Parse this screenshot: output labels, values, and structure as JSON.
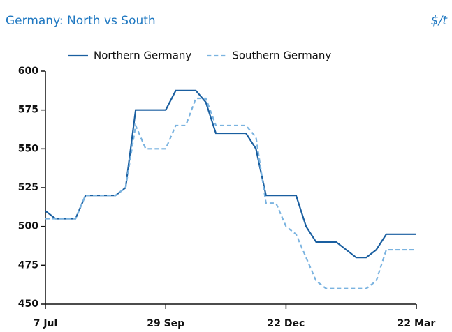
{
  "chart_data": {
    "type": "line",
    "title": "Germany: North vs South",
    "unit": "$/t",
    "categories": [
      "7 Jul",
      null,
      null,
      null,
      null,
      null,
      null,
      null,
      null,
      null,
      null,
      null,
      "29 Sep",
      null,
      null,
      null,
      null,
      null,
      null,
      null,
      null,
      null,
      null,
      null,
      "22 Dec",
      null,
      null,
      null,
      null,
      null,
      null,
      null,
      null,
      null,
      null,
      null,
      null,
      "22 Mar"
    ],
    "series": [
      {
        "name": "Northern Germany",
        "color": "#1a5fa0",
        "dash": false,
        "values": [
          510,
          505,
          505,
          505,
          520,
          520,
          520,
          520,
          525,
          575,
          575,
          575,
          575,
          587.5,
          587.5,
          587.5,
          580,
          560,
          560,
          560,
          560,
          550,
          520,
          520,
          520,
          520,
          500,
          490,
          490,
          490,
          485,
          480,
          480,
          485,
          495,
          495,
          495,
          495
        ]
      },
      {
        "name": "Southern Germany",
        "color": "#7ab3e0",
        "dash": true,
        "values": [
          505,
          505,
          505,
          505,
          520,
          520,
          520,
          520,
          525,
          565,
          550,
          550,
          550,
          565,
          565,
          582.5,
          582.5,
          565,
          565,
          565,
          565,
          557.5,
          515,
          515,
          500,
          495,
          480,
          465,
          460,
          460,
          460,
          460,
          460,
          465,
          485,
          485,
          485,
          485
        ]
      }
    ],
    "ylim": [
      450,
      600
    ],
    "yticks": [
      450,
      475,
      500,
      525,
      550,
      575,
      600
    ]
  }
}
